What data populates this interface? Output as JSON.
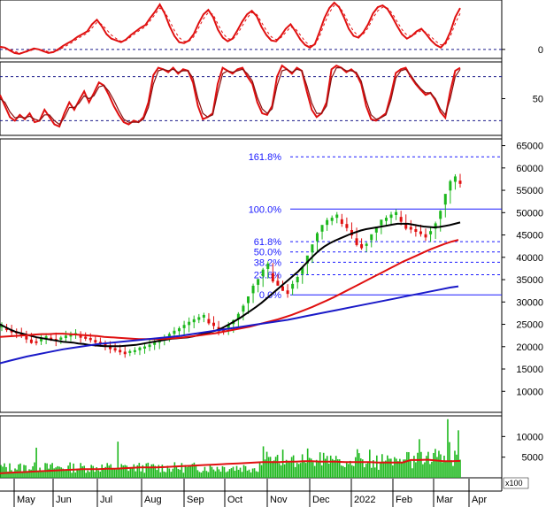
{
  "chart_data": [
    {
      "type": "line",
      "name": "macd-panel",
      "yticks": [
        0
      ],
      "series": [
        {
          "key": "line",
          "color": "#e01010",
          "style": "solid",
          "values": [
            6,
            4,
            -2,
            -8,
            -10,
            -6,
            -2,
            2,
            0,
            -4,
            -8,
            -6,
            0,
            8,
            14,
            20,
            28,
            34,
            40,
            56,
            66,
            52,
            34,
            24,
            20,
            16,
            22,
            32,
            40,
            48,
            54,
            70,
            84,
            100,
            80,
            52,
            30,
            16,
            14,
            20,
            34,
            58,
            78,
            88,
            72,
            44,
            26,
            18,
            24,
            42,
            62,
            78,
            86,
            74,
            50,
            32,
            20,
            18,
            30,
            46,
            56,
            40,
            22,
            10,
            4,
            12,
            40,
            70,
            92,
            104,
            94,
            72,
            46,
            30,
            26,
            38,
            56,
            80,
            94,
            98,
            90,
            72,
            52,
            34,
            24,
            30,
            40,
            46,
            34,
            20,
            10,
            4,
            16,
            40,
            72,
            92
          ]
        },
        {
          "key": "signal",
          "color": "#e01010",
          "style": "dashed",
          "values": [
            4,
            4,
            0,
            -4,
            -8,
            -7,
            -4,
            0,
            1,
            -2,
            -5,
            -6,
            -2,
            4,
            10,
            16,
            24,
            30,
            36,
            48,
            60,
            56,
            44,
            32,
            24,
            18,
            20,
            28,
            36,
            44,
            50,
            64,
            78,
            92,
            84,
            64,
            42,
            26,
            18,
            18,
            28,
            48,
            68,
            82,
            78,
            56,
            36,
            24,
            22,
            34,
            52,
            70,
            82,
            78,
            60,
            42,
            28,
            22,
            26,
            38,
            50,
            46,
            32,
            18,
            8,
            10,
            30,
            58,
            82,
            98,
            96,
            80,
            58,
            40,
            30,
            34,
            48,
            70,
            86,
            94,
            92,
            80,
            62,
            44,
            32,
            30,
            36,
            42,
            38,
            28,
            18,
            10,
            12,
            30,
            58,
            80
          ]
        }
      ],
      "ylim": [
        -20,
        110
      ]
    },
    {
      "type": "line",
      "name": "stochastic-panel",
      "yticks": [
        50
      ],
      "series": [
        {
          "key": "k",
          "color": "#e01010",
          "style": "solid",
          "values": [
            55,
            40,
            25,
            20,
            28,
            22,
            30,
            18,
            20,
            35,
            25,
            15,
            12,
            30,
            45,
            35,
            48,
            60,
            45,
            58,
            72,
            68,
            55,
            40,
            28,
            18,
            15,
            20,
            18,
            25,
            45,
            82,
            92,
            90,
            86,
            92,
            84,
            90,
            88,
            72,
            40,
            22,
            25,
            30,
            70,
            92,
            88,
            84,
            90,
            92,
            80,
            70,
            45,
            30,
            28,
            40,
            80,
            95,
            90,
            84,
            92,
            88,
            60,
            35,
            25,
            30,
            45,
            90,
            95,
            92,
            86,
            90,
            84,
            70,
            40,
            22,
            20,
            25,
            30,
            55,
            85,
            90,
            92,
            80,
            70,
            62,
            55,
            58,
            48,
            32,
            24,
            60,
            88,
            92
          ]
        },
        {
          "key": "d",
          "color": "#8a1010",
          "style": "solid",
          "values": [
            50,
            45,
            32,
            24,
            25,
            24,
            26,
            22,
            20,
            28,
            28,
            20,
            15,
            24,
            38,
            38,
            44,
            54,
            50,
            54,
            66,
            68,
            60,
            48,
            34,
            22,
            18,
            18,
            18,
            22,
            38,
            70,
            88,
            90,
            88,
            90,
            86,
            88,
            88,
            78,
            50,
            30,
            25,
            28,
            58,
            84,
            88,
            86,
            88,
            90,
            84,
            74,
            52,
            36,
            30,
            36,
            68,
            88,
            90,
            86,
            90,
            88,
            68,
            44,
            30,
            30,
            40,
            78,
            92,
            92,
            88,
            88,
            86,
            74,
            48,
            28,
            22,
            24,
            28,
            48,
            78,
            88,
            90,
            82,
            72,
            64,
            58,
            58,
            50,
            36,
            28,
            50,
            80,
            90
          ]
        }
      ],
      "levels": [
        20,
        80
      ],
      "ylim": [
        0,
        100
      ]
    },
    {
      "type": "line",
      "name": "price-panel",
      "yticks": [
        10000,
        15000,
        20000,
        25000,
        30000,
        35000,
        40000,
        45000,
        50000,
        55000,
        60000,
        65000
      ],
      "ylim": [
        5300,
        66500
      ],
      "fib_levels": [
        {
          "label": "161.8%",
          "value": 62500,
          "style": "dashed"
        },
        {
          "label": "100.0%",
          "value": 50800,
          "style": "solid"
        },
        {
          "label": "61.8%",
          "value": 43500,
          "style": "dashed"
        },
        {
          "label": "50.0%",
          "value": 41200,
          "style": "dashed"
        },
        {
          "label": "38.2%",
          "value": 38900,
          "style": "dashed"
        },
        {
          "label": "23.6%",
          "value": 36100,
          "style": "dashed"
        },
        {
          "label": "0.0%",
          "value": 31600,
          "style": "solid"
        }
      ],
      "candles": [
        24500,
        24000,
        23500,
        23200,
        22800,
        22000,
        21200,
        21000,
        21500,
        22000,
        21800,
        21500,
        21800,
        22200,
        22500,
        22800,
        22300,
        22000,
        21700,
        21200,
        20800,
        20500,
        19800,
        19400,
        19000,
        18600,
        18800,
        19000,
        19500,
        19800,
        20200,
        20700,
        21200,
        21800,
        22500,
        23200,
        23800,
        24500,
        25200,
        25800,
        26300,
        26800,
        25700,
        25000,
        23900,
        23500,
        24500,
        25500,
        26800,
        28500,
        30500,
        32800,
        34500,
        36500,
        38000,
        35500,
        34200,
        33000,
        32200,
        33500,
        35000,
        37000,
        39500,
        42000,
        44500,
        46500,
        47800,
        48500,
        49200,
        48000,
        47000,
        45500,
        43500,
        42500,
        42800,
        44500,
        46200,
        47800,
        48500,
        49200,
        49800,
        48500,
        47000,
        46500,
        46000,
        45500,
        44800,
        45500,
        47000,
        49500,
        53000,
        56000,
        57500,
        56800
      ],
      "series": [
        {
          "key": "ma-black",
          "color": "#000000",
          "values": [
            25000,
            24400,
            23800,
            23300,
            23000,
            22700,
            22400,
            22100,
            21900,
            21700,
            21500,
            21300,
            21100,
            21000,
            20900,
            20700,
            20600,
            20400,
            20300,
            20200,
            20100,
            20100,
            20100,
            20100,
            20200,
            20300,
            20400,
            20600,
            20800,
            21000,
            21200,
            21400,
            21600,
            21800,
            21900,
            22000,
            22100,
            22300,
            22600,
            22900,
            23200,
            23500,
            23900,
            24500,
            25100,
            25800,
            26500,
            27300,
            28100,
            28900,
            29800,
            30800,
            31800,
            32800,
            33800,
            34800,
            35800,
            36800,
            38000,
            39200,
            40400,
            41500,
            42400,
            43100,
            43700,
            44200,
            44700,
            45200,
            45600,
            46000,
            46300,
            46500,
            46700,
            46900,
            47100,
            47300,
            47500,
            47500,
            47500,
            47300,
            47100,
            46900,
            46800,
            46700,
            46800,
            47000,
            47200,
            47500,
            47800
          ]
        },
        {
          "key": "ma-red",
          "color": "#e01010",
          "values": [
            22200,
            22300,
            22400,
            22500,
            22600,
            22700,
            22800,
            22800,
            22900,
            22900,
            22800,
            22700,
            22600,
            22500,
            22400,
            22200,
            22100,
            22000,
            21900,
            21800,
            21700,
            21700,
            21700,
            21700,
            21800,
            21900,
            22000,
            22200,
            22400,
            22600,
            22800,
            23000,
            23300,
            23600,
            23900,
            24200,
            24500,
            24900,
            25300,
            25700,
            26100,
            26600,
            27100,
            27700,
            28300,
            28900,
            29600,
            30300,
            31000,
            31800,
            32600,
            33400,
            34200,
            35000,
            35800,
            36600,
            37400,
            38200,
            39000,
            39700,
            40400,
            41100,
            41800,
            42400,
            43000,
            43500,
            43900
          ]
        },
        {
          "key": "ma-blue",
          "color": "#1a1ac8",
          "values": [
            16300,
            16800,
            17300,
            17800,
            18200,
            18600,
            19000,
            19400,
            19700,
            20000,
            20300,
            20600,
            20800,
            21000,
            21200,
            21400,
            21600,
            21800,
            22000,
            22200,
            22400,
            22700,
            23000,
            23300,
            23600,
            23900,
            24200,
            24500,
            24800,
            25100,
            25400,
            25700,
            26000,
            26400,
            26800,
            27200,
            27600,
            28000,
            28400,
            28800,
            29200,
            29600,
            30000,
            30400,
            30800,
            31200,
            31600,
            32000,
            32400,
            32800,
            33200,
            33500
          ]
        }
      ]
    },
    {
      "type": "bar",
      "name": "volume-panel",
      "unit_label": "x100",
      "yticks": [
        5000,
        10000
      ],
      "ylim": [
        0,
        15000
      ],
      "bar_color": "#1db81d",
      "ma_color": "#e01010",
      "volume_ma": [
        1100,
        1200,
        1300,
        1400,
        1500,
        1600,
        1700,
        1800,
        1900,
        2000,
        2100,
        2100,
        2100,
        2200,
        2200,
        2300,
        2400,
        2500,
        2500,
        2500,
        2600,
        2700,
        2800,
        2900,
        3000,
        3100,
        3200,
        3300,
        3400,
        3500,
        3600,
        3700,
        3800,
        3800,
        3800,
        3900,
        3900,
        4000,
        4000,
        3900,
        3900,
        3900,
        3800,
        3800,
        3800,
        3800,
        3700,
        3700,
        3700,
        3700,
        4300,
        4300,
        4400,
        4200,
        4000,
        4000,
        4100
      ]
    }
  ],
  "x_axis": {
    "labels": [
      "May",
      "Jun",
      "Jul",
      "Aug",
      "Sep",
      "Oct",
      "Nov",
      "Dec",
      "2022",
      "Feb",
      "Mar",
      "Apr"
    ]
  }
}
